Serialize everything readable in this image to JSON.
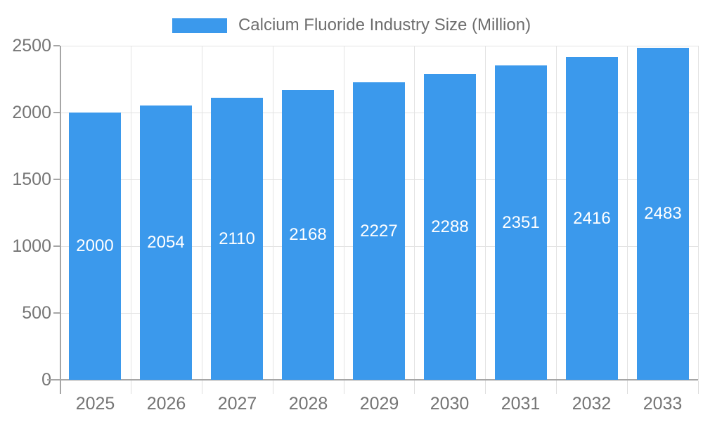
{
  "chart_data": {
    "type": "bar",
    "title": "Calcium Fluoride Industry Size (Million)",
    "categories": [
      "2025",
      "2026",
      "2027",
      "2028",
      "2029",
      "2030",
      "2031",
      "2032",
      "2033"
    ],
    "series": [
      {
        "name": "Calcium Fluoride Industry Size (Million)",
        "values": [
          2000,
          2054,
          2110,
          2168,
          2227,
          2288,
          2351,
          2416,
          2483
        ]
      }
    ],
    "bar_value_labels": [
      "2000",
      "2054",
      "2110",
      "2168",
      "2227",
      "2288",
      "2351",
      "2416",
      "2483"
    ],
    "xlabel": "",
    "ylabel": "",
    "ylim": [
      0,
      2500
    ],
    "yticks": [
      0,
      500,
      1000,
      1500,
      2000,
      2500
    ],
    "ytick_labels": [
      "0",
      "500",
      "1000",
      "1500",
      "2000",
      "2500"
    ],
    "grid": true,
    "legend_position": "top",
    "colors": {
      "bar": "#3B99EC",
      "bar_label_text": "#FFFFFF",
      "axis_line": "#A6A6A6",
      "gridline": "#E3E3E3",
      "minor_tick": "#DEDEDE",
      "tick_text": "#757575",
      "legend_text": "#6E6E6E"
    }
  }
}
